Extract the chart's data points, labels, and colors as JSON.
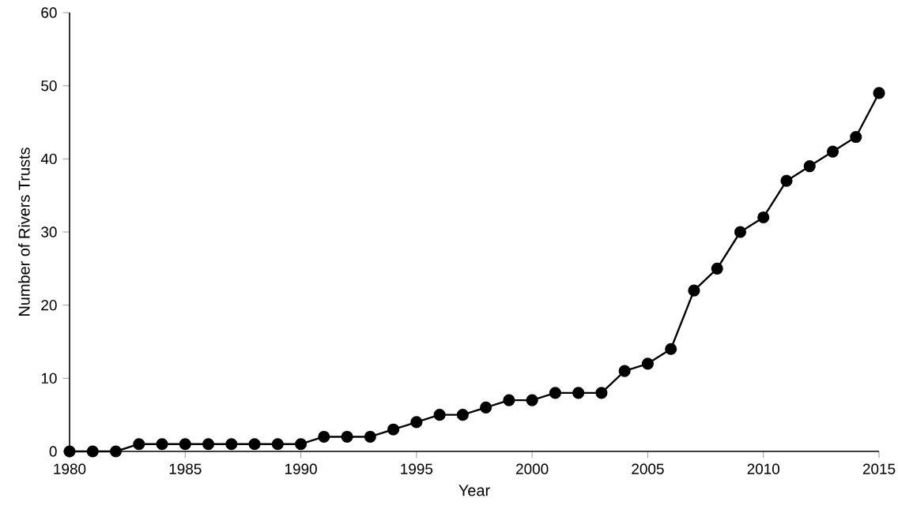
{
  "chart_data": {
    "type": "line",
    "xlabel": "Year",
    "ylabel": "Number of Rivers Trusts",
    "x": [
      1980,
      1981,
      1982,
      1983,
      1984,
      1985,
      1986,
      1987,
      1988,
      1989,
      1990,
      1991,
      1992,
      1993,
      1994,
      1995,
      1996,
      1997,
      1998,
      1999,
      2000,
      2001,
      2002,
      2003,
      2004,
      2005,
      2006,
      2007,
      2008,
      2009,
      2010,
      2011,
      2012,
      2013,
      2014,
      2015
    ],
    "values": [
      0,
      0,
      0,
      1,
      1,
      1,
      1,
      1,
      1,
      1,
      1,
      2,
      2,
      2,
      3,
      4,
      5,
      5,
      6,
      7,
      7,
      8,
      8,
      8,
      11,
      12,
      14,
      22,
      25,
      30,
      32,
      37,
      39,
      41,
      43,
      49
    ],
    "color": "#000000",
    "marker": "circle",
    "line_style": "solid",
    "grid": false,
    "xlim": [
      1980,
      2015
    ],
    "ylim": [
      0,
      60
    ],
    "xticks": [
      1980,
      1985,
      1990,
      1995,
      2000,
      2005,
      2010,
      2015
    ],
    "yticks": [
      0,
      10,
      20,
      30,
      40,
      50,
      60
    ]
  }
}
